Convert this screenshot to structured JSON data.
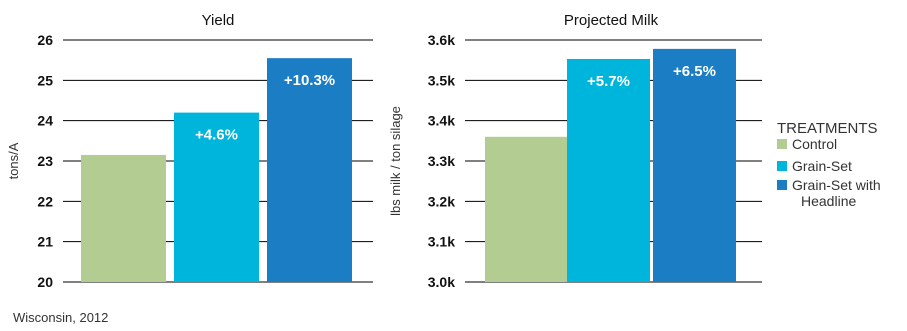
{
  "colors": {
    "control": "#b3cc92",
    "grain_set": "#00b5dc",
    "grain_set_headline": "#1b7dc4",
    "axis_text": "#111111",
    "gridline": "#000000"
  },
  "legend": {
    "title": "TREATMENTS",
    "items": [
      {
        "label": "Control",
        "color": "#b3cc92"
      },
      {
        "label": "Grain-Set",
        "color": "#00b5dc"
      },
      {
        "label": "Grain-Set with\nHeadline",
        "color": "#1b7dc4"
      }
    ]
  },
  "source_note": "Wisconsin, 2012",
  "chart_data": [
    {
      "type": "bar",
      "title": "Yield",
      "xlabel": "",
      "ylabel": "tons/A",
      "ylim": [
        20,
        26
      ],
      "yticks": [
        20,
        21,
        22,
        23,
        24,
        25,
        26
      ],
      "ytick_labels": [
        "20",
        "21",
        "22",
        "23",
        "24",
        "25",
        "26"
      ],
      "categories": [
        "Control",
        "Grain-Set",
        "Grain-Set with Headline"
      ],
      "values": [
        23.15,
        24.2,
        25.55
      ],
      "data_labels": [
        "",
        "+4.6%",
        "+10.3%"
      ],
      "grid": true
    },
    {
      "type": "bar",
      "title": "Projected Milk",
      "xlabel": "",
      "ylabel": "lbs milk / ton silage",
      "ylim": [
        3.0,
        3.6
      ],
      "yticks": [
        3.0,
        3.1,
        3.2,
        3.3,
        3.4,
        3.5,
        3.6
      ],
      "ytick_labels": [
        "3.0k",
        "3.1k",
        "3.2k",
        "3.3k",
        "3.4k",
        "3.5k",
        "3.6k"
      ],
      "categories": [
        "Control",
        "Grain-Set",
        "Grain-Set with Headline"
      ],
      "values": [
        3.36,
        3.553,
        3.578
      ],
      "data_labels": [
        "",
        "+5.7%",
        "+6.5%"
      ],
      "grid": true
    }
  ]
}
